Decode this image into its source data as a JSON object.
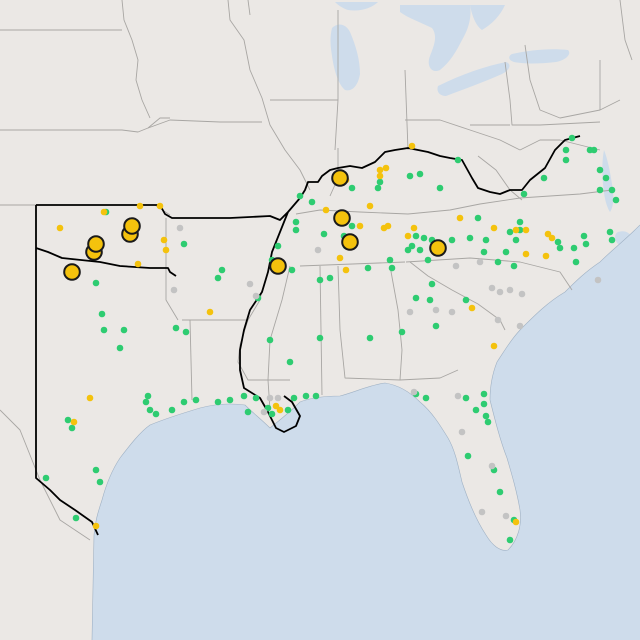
{
  "map": {
    "colors": {
      "land": "#ebe8e5",
      "water": "#cedceb",
      "state_border": "#a8a6a3",
      "region_outline": "#000000",
      "marker_green": "#2ecc71",
      "marker_yellow": "#f4c20d",
      "marker_gray": "#c3c3c3",
      "marker_outline": "#1a1a1a"
    },
    "labels": []
  }
}
